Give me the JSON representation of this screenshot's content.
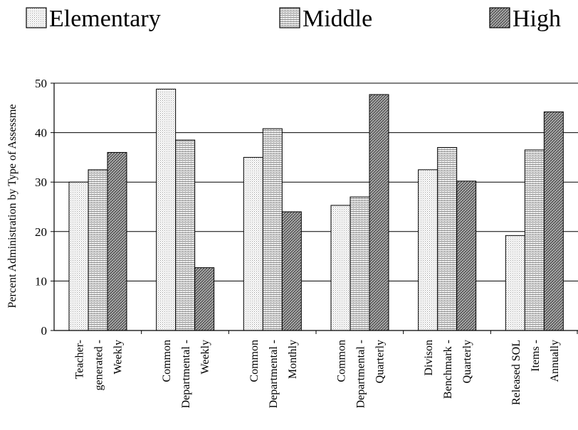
{
  "chart_data": {
    "type": "bar",
    "title": "",
    "xlabel": "",
    "ylabel": "Percent Administration by Type of Assessme",
    "ylim": [
      0,
      50
    ],
    "yticks": [
      0,
      10,
      20,
      30,
      40,
      50
    ],
    "grid": true,
    "legend_position": "top",
    "categories": [
      [
        "Teacher-",
        "generated -",
        "Weekly"
      ],
      [
        "Common",
        "Departmental -",
        "Weekly"
      ],
      [
        "Common",
        "Departmental -",
        "Monthly"
      ],
      [
        "Common",
        "Departmental -",
        "Quarterly"
      ],
      [
        "Divison",
        "Benchmark -",
        "Quarterly"
      ],
      [
        "Released SOL",
        "Items -",
        "Annually"
      ]
    ],
    "series": [
      {
        "name": "Elementary",
        "pattern": "dots",
        "values": [
          30.0,
          48.8,
          35.0,
          25.3,
          32.5,
          19.2
        ]
      },
      {
        "name": "Middle",
        "pattern": "lines",
        "values": [
          32.5,
          38.5,
          40.8,
          27.0,
          37.0,
          36.5
        ]
      },
      {
        "name": "High",
        "pattern": "crosshatch",
        "values": [
          36.0,
          12.7,
          24.0,
          47.7,
          30.2,
          44.2
        ]
      }
    ]
  }
}
